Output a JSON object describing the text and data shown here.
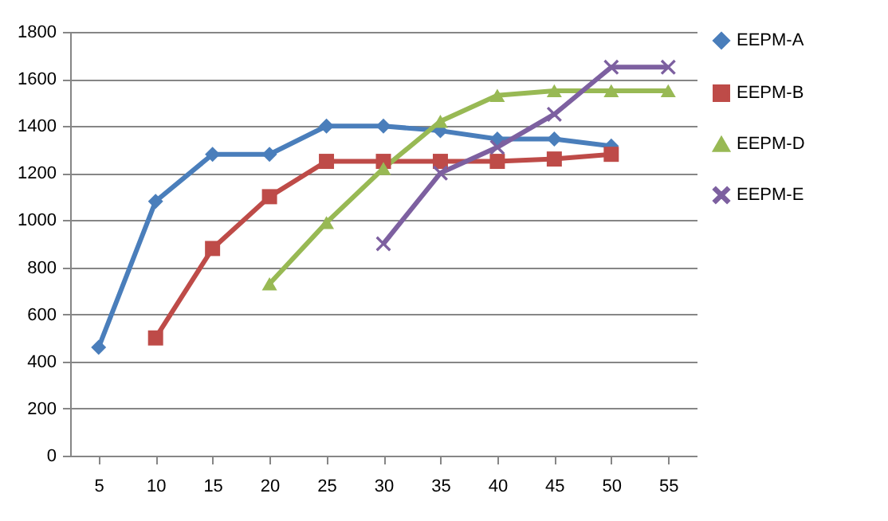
{
  "chart_data": {
    "type": "line",
    "categories": [
      "5",
      "10",
      "15",
      "20",
      "25",
      "30",
      "35",
      "40",
      "45",
      "50",
      "55"
    ],
    "series": [
      {
        "name": "EEPM-A",
        "color": "#4a7ebb",
        "marker": "diamond",
        "values": [
          460,
          1080,
          1280,
          1280,
          1400,
          1400,
          1380,
          1345,
          1345,
          1315,
          null
        ]
      },
      {
        "name": "EEPM-B",
        "color": "#be4b48",
        "marker": "square",
        "values": [
          null,
          500,
          880,
          1100,
          1250,
          1250,
          1250,
          1250,
          1260,
          1280,
          null
        ]
      },
      {
        "name": "EEPM-D",
        "color": "#98b954",
        "marker": "triangle",
        "values": [
          null,
          null,
          null,
          730,
          990,
          1220,
          1420,
          1530,
          1550,
          1550,
          1550
        ]
      },
      {
        "name": "EEPM-E",
        "color": "#7d60a0",
        "marker": "cross",
        "values": [
          null,
          null,
          null,
          null,
          null,
          900,
          1200,
          1310,
          1450,
          1650,
          1650
        ]
      }
    ],
    "ylim": [
      0,
      1800
    ],
    "yticks": [
      0,
      200,
      400,
      600,
      800,
      1000,
      1200,
      1400,
      1600,
      1800
    ],
    "grid": "y",
    "legend": "right"
  }
}
